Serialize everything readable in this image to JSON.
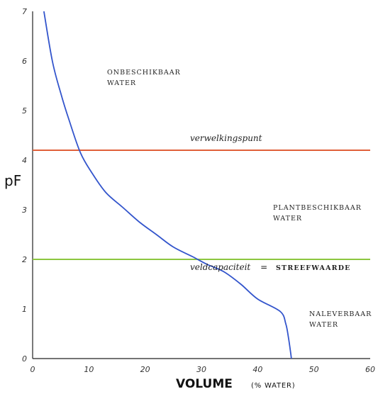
{
  "chart_data": {
    "type": "line",
    "ylabel": "pF",
    "xlabel": "VOLUME",
    "xlabel_unit": "(% WATER)",
    "xlim": [
      0,
      60
    ],
    "ylim": [
      0,
      7
    ],
    "x_ticks": [
      0,
      10,
      20,
      30,
      40,
      50,
      60
    ],
    "y_ticks": [
      0,
      1,
      2,
      3,
      4,
      5,
      6,
      7
    ],
    "grid": false,
    "colors": {
      "curve": "#3355cc",
      "wilting": "#e0603a",
      "fieldcap": "#8cc63f",
      "axis": "#222222"
    },
    "series": [
      {
        "x": [
          2.0,
          3.5,
          5.0,
          6.5,
          8.5,
          10.5,
          13.0,
          16.0,
          19.0,
          22.0,
          25.0,
          28.5,
          31.0,
          34.0,
          37.0,
          40.0,
          44.0,
          45.0,
          45.5,
          46.0
        ],
        "y": [
          7.0,
          6.0,
          5.35,
          4.8,
          4.15,
          3.75,
          3.35,
          3.05,
          2.75,
          2.5,
          2.25,
          2.05,
          1.9,
          1.75,
          1.5,
          1.2,
          0.95,
          0.7,
          0.4,
          0.0
        ]
      }
    ],
    "reference_lines": [
      {
        "y": 4.2,
        "label": "verwelkingspunt"
      },
      {
        "y": 2.0,
        "label": "veldcapaciteit",
        "label_connector": "=",
        "label_emphasis": "STREEFWAARDE"
      }
    ],
    "zones": [
      {
        "lines": [
          "ONBESCHIKBAAR",
          "WATER"
        ]
      },
      {
        "lines": [
          "PLANTBESCHIKBAAR",
          "WATER"
        ]
      },
      {
        "lines": [
          "NALEVERBAAR",
          "WATER"
        ]
      }
    ]
  }
}
